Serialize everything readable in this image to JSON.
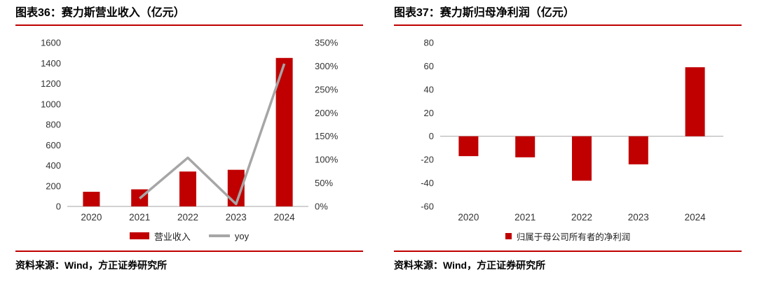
{
  "panels": {
    "left": {
      "title": "图表36：赛力斯营业收入（亿元）",
      "legend": [
        {
          "label": "营业收入",
          "swatch": "bar"
        },
        {
          "label": "yoy",
          "swatch": "line"
        }
      ],
      "source": "资料来源：Wind，方正证券研究所"
    },
    "right": {
      "title": "图表37：赛力斯归母净利润（亿元）",
      "legend": [
        {
          "label": "归属于母公司所有者的净利润",
          "swatch": "bar"
        }
      ],
      "source": "资料来源：Wind，方正证券研究所"
    }
  },
  "colors": {
    "bar": "#c00000",
    "line": "#a6a6a6",
    "axis": "#a6a6a6",
    "rule": "#c00000",
    "tick_text": "#333333"
  },
  "chart_data": [
    {
      "type": "bar",
      "subtype": "bar+line-combo",
      "title": "图表36：赛力斯营业收入（亿元）",
      "categories": [
        "2020",
        "2021",
        "2022",
        "2023",
        "2024"
      ],
      "series": [
        {
          "name": "营业收入",
          "type": "bar",
          "axis": "left",
          "values": [
            143,
            167,
            341,
            358,
            1451
          ]
        },
        {
          "name": "yoy",
          "type": "line",
          "axis": "right",
          "x": [
            "2021",
            "2022",
            "2023",
            "2024"
          ],
          "values": [
            17,
            104,
            5,
            305
          ]
        }
      ],
      "left_axis": {
        "min": 0,
        "max": 1600,
        "step": 200,
        "label_suffix": ""
      },
      "right_axis": {
        "min": 0,
        "max": 350,
        "step": 50,
        "label_suffix": "%"
      },
      "grid": false,
      "legend_position": "bottom"
    },
    {
      "type": "bar",
      "title": "图表37：赛力斯归母净利润（亿元）",
      "categories": [
        "2020",
        "2021",
        "2022",
        "2023",
        "2024"
      ],
      "values": [
        -17,
        -18,
        -38,
        -24,
        59
      ],
      "ylim": [
        -60,
        80
      ],
      "step": 20,
      "grid": false,
      "legend": "归属于母公司所有者的净利润",
      "legend_position": "bottom"
    }
  ]
}
